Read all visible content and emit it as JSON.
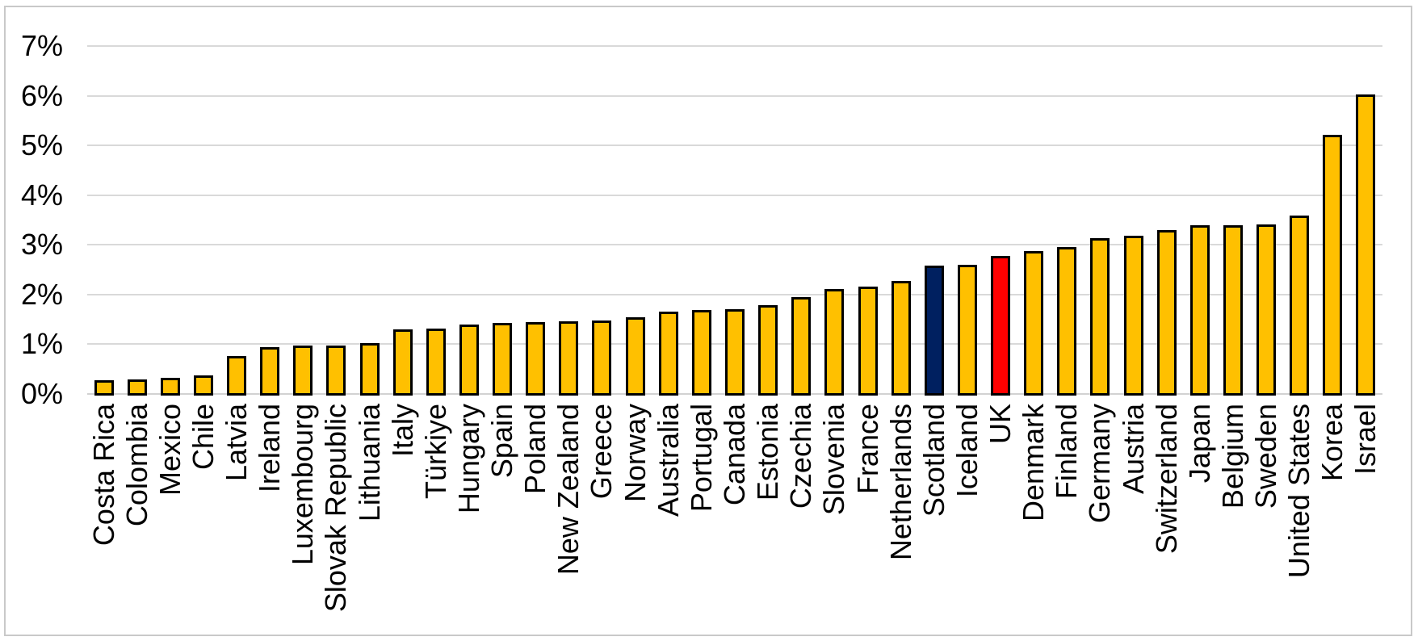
{
  "figure": {
    "background_color": "#FFFFFF",
    "border_color": "#C9C9C9"
  },
  "chart_data": {
    "type": "bar",
    "title": "",
    "xlabel": "",
    "ylabel": "",
    "categories": [
      "Costa Rica",
      "Colombia",
      "Mexico",
      "Chile",
      "Latvia",
      "Ireland",
      "Luxembourg",
      "Slovak Republic",
      "Lithuania",
      "Italy",
      "Türkiye",
      "Hungary",
      "Spain",
      "Poland",
      "New Zealand",
      "Greece",
      "Norway",
      "Australia",
      "Portugal",
      "Canada",
      "Estonia",
      "Czechia",
      "Slovenia",
      "France",
      "Netherlands",
      "Scotland",
      "Iceland",
      "UK",
      "Denmark",
      "Finland",
      "Germany",
      "Austria",
      "Switzerland",
      "Japan",
      "Belgium",
      "Sweden",
      "United States",
      "Korea",
      "Israel"
    ],
    "values": [
      0.27,
      0.29,
      0.32,
      0.37,
      0.76,
      0.94,
      0.97,
      0.98,
      1.02,
      1.3,
      1.32,
      1.39,
      1.43,
      1.45,
      1.46,
      1.48,
      1.55,
      1.65,
      1.69,
      1.71,
      1.78,
      1.95,
      2.11,
      2.16,
      2.28,
      2.58,
      2.6,
      2.77,
      2.87,
      2.95,
      3.13,
      3.19,
      3.3,
      3.4,
      3.4,
      3.41,
      3.59,
      5.21,
      6.02
    ],
    "value_unit": "%",
    "y_ticks": [
      "0%",
      "1%",
      "2%",
      "3%",
      "4%",
      "5%",
      "6%",
      "7%"
    ],
    "ylim": [
      0,
      7
    ],
    "grid": "horizontal",
    "gridline_color": "#D9D9D9",
    "legend": "none",
    "bar_fill_default": "#FFC000",
    "bar_outline_color": "#000000",
    "highlighted_bars": {
      "Scotland": "#002060",
      "UK": "#FF0000"
    }
  }
}
